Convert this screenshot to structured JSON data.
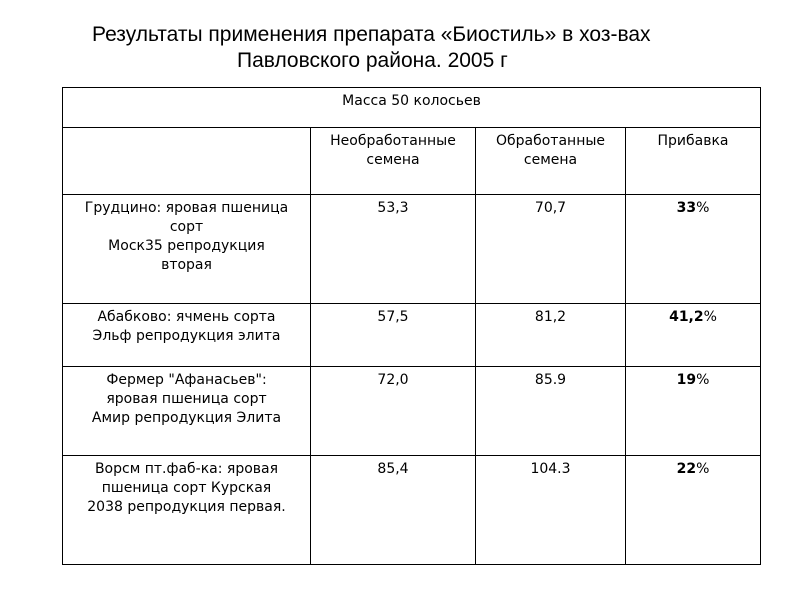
{
  "title": {
    "line1": "Результаты применения препарата «Биостиль» в хоз-вах",
    "line2": "Павловского района. 2005  г"
  },
  "table": {
    "header": "Масса 50 колосьев",
    "columns": {
      "untreated_l1": "Необработанные",
      "untreated_l2": "семена",
      "treated_l1": "Обработанные",
      "treated_l2": "семена",
      "gain": "Прибавка"
    },
    "rows": [
      {
        "label_lines": [
          "Грудцино: яровая пшеница",
          "сорт",
          "Моск35 репродукция",
          "вторая"
        ],
        "untreated": "53,3",
        "treated": "70,7",
        "gain_value": "33",
        "gain_unit": "%"
      },
      {
        "label_lines": [
          "Абабково: ячмень сорта",
          "Эльф репродукция элита"
        ],
        "untreated": "57,5",
        "treated": "81,2",
        "gain_value": "41,2",
        "gain_unit": "%"
      },
      {
        "label_lines": [
          "Фермер \"Афанасьев\":",
          "яровая пшеница сорт",
          "Амир репродукция Элита"
        ],
        "untreated": "72,0",
        "treated": "85.9",
        "gain_value": "19",
        "gain_unit": "%"
      },
      {
        "label_lines": [
          "Ворсм пт.фаб-ка: яровая",
          "пшеница сорт Курская",
          "2038 репродукция первая."
        ],
        "untreated": "85,4",
        "treated": "104.3",
        "gain_value": "22",
        "gain_unit": "%"
      }
    ]
  }
}
